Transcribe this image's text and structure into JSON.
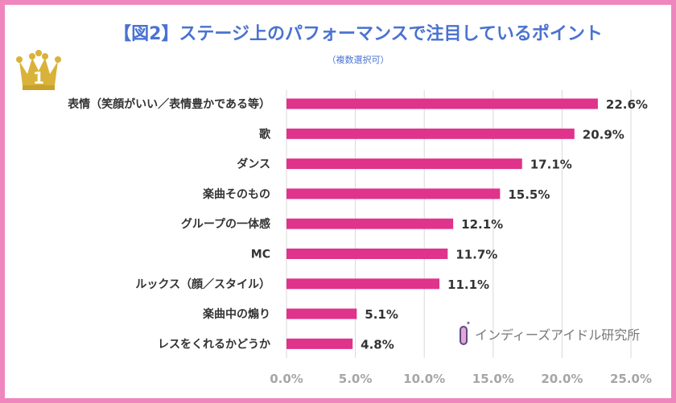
{
  "chart_data": {
    "type": "bar",
    "orientation": "horizontal",
    "title": "【図2】ステージ上のパフォーマンスで注目しているポイント",
    "subtitle": "（複数選択可）",
    "categories": [
      "表情（笑顔がいい／表情豊かである等）",
      "歌",
      "ダンス",
      "楽曲そのもの",
      "グループの一体感",
      "MC",
      "ルックス（顔／スタイル）",
      "楽曲中の煽り",
      "レスをくれるかどうか"
    ],
    "values": [
      22.6,
      20.9,
      17.1,
      15.5,
      12.1,
      11.7,
      11.1,
      5.1,
      4.8
    ],
    "value_labels": [
      "22.6%",
      "20.9%",
      "17.1%",
      "15.5%",
      "12.1%",
      "11.7%",
      "11.1%",
      "5.1%",
      "4.8%"
    ],
    "xlim": [
      0,
      25
    ],
    "x_ticks": [
      "0.0%",
      "5.0%",
      "10.0%",
      "15.0%",
      "20.0%",
      "25.0%"
    ],
    "grid": "vertical",
    "bar_color": "#e0338b",
    "title_color": "#4a72d0",
    "border_color": "#ef86bd"
  },
  "badge": {
    "rank": "1",
    "icon": "gold-crown-icon"
  },
  "credit": {
    "text": "インディーズアイドル研究所",
    "icon": "test-tube-icon"
  }
}
